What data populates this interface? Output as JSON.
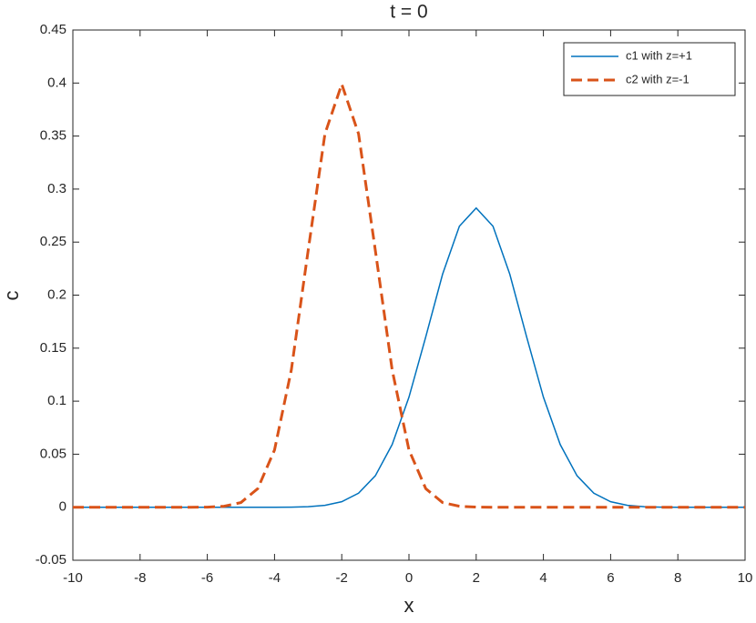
{
  "chart_data": {
    "type": "line",
    "title": "t = 0",
    "xlabel": "x",
    "ylabel": "c",
    "x": [
      -10,
      -9.5,
      -9,
      -8.5,
      -8,
      -7.5,
      -7,
      -6.5,
      -6,
      -5.5,
      -5,
      -4.5,
      -4,
      -3.5,
      -3,
      -2.5,
      -2,
      -1.5,
      -1,
      -0.5,
      0,
      0.5,
      1,
      1.5,
      2,
      2.5,
      3,
      3.5,
      4,
      4.5,
      5,
      5.5,
      6,
      6.5,
      7,
      7.5,
      8,
      8.5,
      9,
      9.5,
      10
    ],
    "series": [
      {
        "name": "c1 with z=+1",
        "color": "#0072bd",
        "linestyle": "solid",
        "linewidth": 1.5,
        "values": [
          0,
          0,
          0,
          0,
          0,
          0,
          0,
          0,
          0,
          0,
          0,
          0,
          0,
          0.0001,
          0.0005,
          0.0018,
          0.0052,
          0.0132,
          0.0297,
          0.0591,
          0.1038,
          0.1607,
          0.2197,
          0.265,
          0.2821,
          0.265,
          0.2197,
          0.1607,
          0.1038,
          0.0591,
          0.0297,
          0.0132,
          0.0052,
          0.0018,
          0.0005,
          0.0001,
          0,
          0,
          0,
          0,
          0
        ]
      },
      {
        "name": "c2 with z=-1",
        "color": "#d95319",
        "linestyle": "dashed",
        "linewidth": 3,
        "values": [
          0,
          0,
          0,
          0,
          0,
          0,
          0,
          0,
          0.0001,
          0.0009,
          0.0044,
          0.0175,
          0.054,
          0.1295,
          0.242,
          0.3521,
          0.3989,
          0.3521,
          0.242,
          0.1295,
          0.054,
          0.0175,
          0.0044,
          0.0009,
          0.0001,
          0,
          0,
          0,
          0,
          0,
          0,
          0,
          0,
          0,
          0,
          0,
          0,
          0,
          0,
          0,
          0
        ]
      }
    ],
    "xlim": [
      -10,
      10
    ],
    "xticks": [
      -10,
      -8,
      -6,
      -4,
      -2,
      0,
      2,
      4,
      6,
      8,
      10
    ],
    "ylim": [
      -0.05,
      0.45
    ],
    "yticks": [
      -0.05,
      0,
      0.05,
      0.1,
      0.15,
      0.2,
      0.25,
      0.3,
      0.35,
      0.4,
      0.45
    ],
    "grid": false,
    "legend": "top-right"
  }
}
